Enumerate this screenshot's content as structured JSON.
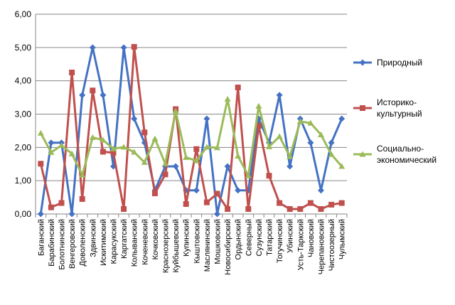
{
  "chart_data": {
    "type": "line",
    "title": "",
    "xlabel": "",
    "ylabel": "",
    "ylim": [
      0,
      6
    ],
    "y_ticks": [
      "0,00",
      "1,00",
      "2,00",
      "3,00",
      "4,00",
      "5,00",
      "6,00"
    ],
    "grid": "horizontal",
    "legend_position": "right",
    "categories": [
      "Баганский",
      "Барабинский",
      "Болотнинский",
      "Венгеровский",
      "Доволенский",
      "Здвинский",
      "Искитимский",
      "Карасукский",
      "Каргатский",
      "Колыванский",
      "Коченевский",
      "Кочковский",
      "Краснозерский",
      "Куйбышевский",
      "Купинский",
      "Кыштовский",
      "Маслянинский",
      "Мошковский",
      "Новосибирский",
      "Ордынский",
      "Северный",
      "Сузунский",
      "Татарский",
      "Тогучинский",
      "Убинский",
      "Усть-Таркский",
      "Чановский",
      "Черепановский",
      "Чистоозерный",
      "Чулымский"
    ],
    "series": [
      {
        "name": "Природный",
        "color": "#4472C4",
        "marker": "diamond",
        "legend_lines": [
          "Природный"
        ],
        "values": [
          0.0,
          2.14,
          2.14,
          0.0,
          3.57,
          5.0,
          3.57,
          1.43,
          5.0,
          2.86,
          2.14,
          0.71,
          1.43,
          1.43,
          0.71,
          0.71,
          2.86,
          0.0,
          1.43,
          0.71,
          0.71,
          2.86,
          2.14,
          3.57,
          1.43,
          2.86,
          2.14,
          0.71,
          2.14,
          2.86
        ]
      },
      {
        "name": "Историко-культурный",
        "color": "#C0504D",
        "marker": "square",
        "legend_lines": [
          "Историко-",
          "культурный"
        ],
        "values": [
          1.51,
          0.2,
          0.33,
          4.25,
          0.45,
          3.71,
          1.87,
          1.84,
          0.15,
          5.02,
          2.45,
          0.62,
          1.19,
          3.15,
          0.3,
          1.95,
          0.35,
          0.61,
          0.15,
          3.8,
          0.15,
          2.65,
          1.15,
          0.33,
          0.15,
          0.15,
          0.33,
          0.15,
          0.28,
          0.33
        ]
      },
      {
        "name": "Социально-экономический",
        "color": "#9BBB59",
        "marker": "triangle",
        "legend_lines": [
          "Социально-",
          "экономический"
        ],
        "values": [
          2.43,
          1.85,
          2.06,
          1.81,
          1.17,
          2.3,
          2.22,
          1.96,
          2.01,
          1.86,
          1.55,
          2.26,
          1.51,
          3.09,
          1.7,
          1.6,
          2.01,
          1.99,
          3.45,
          1.74,
          1.15,
          3.24,
          2.02,
          2.33,
          1.73,
          2.78,
          2.73,
          2.38,
          1.79,
          1.43
        ]
      }
    ]
  }
}
